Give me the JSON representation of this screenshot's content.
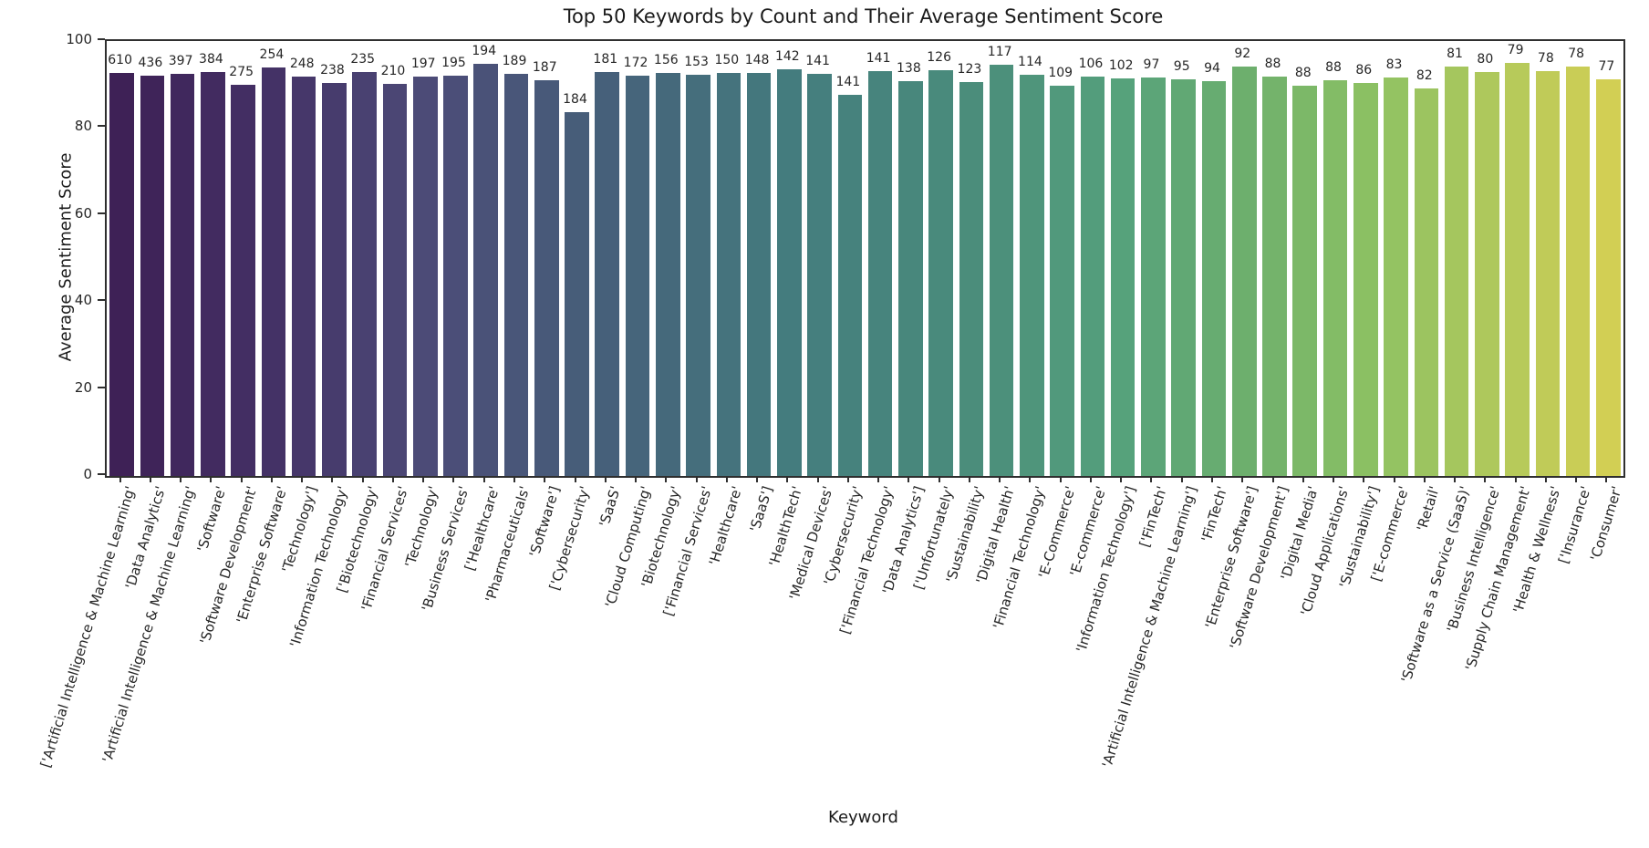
{
  "chart_data": {
    "type": "bar",
    "title": "Top 50 Keywords by Count and Their Average Sentiment Score",
    "xlabel": "Keyword",
    "ylabel": "Average Sentiment Score",
    "ylim": [
      0,
      100
    ],
    "yticks": [
      0,
      20,
      40,
      60,
      80,
      100
    ],
    "grid": false,
    "legend_position": "none",
    "x_tick_rotation_deg": 73,
    "categories": [
      "['Artificial Intelligence & Machine Learning'",
      "'Data Analytics'",
      "'Artificial Intelligence & Machine Learning'",
      "'Software'",
      "'Software Development'",
      "'Enterprise Software'",
      "'Technology']",
      "'Information Technology'",
      "['Biotechnology'",
      "'Financial Services'",
      "'Technology'",
      "'Business Services'",
      "['Healthcare'",
      "'Pharmaceuticals'",
      "'Software']",
      "['Cybersecurity'",
      "'SaaS'",
      "'Cloud Computing'",
      "'Biotechnology'",
      "['Financial Services'",
      "'Healthcare'",
      "'SaaS']",
      "'HealthTech'",
      "'Medical Devices'",
      "'Cybersecurity'",
      "['Financial Technology'",
      "'Data Analytics']",
      "['Unfortunately'",
      "'Sustainability'",
      "'Digital Health'",
      "'Financial Technology'",
      "'E-Commerce'",
      "'E-commerce'",
      "'Information Technology']",
      "['FinTech'",
      "'Artificial Intelligence & Machine Learning']",
      "'FinTech'",
      "'Enterprise Software']",
      "'Software Development']",
      "'Digital Media'",
      "'Cloud Applications'",
      "'Sustainability']",
      "['E-commerce'",
      "'Retail'",
      "'Software as a Service (SaaS)'",
      "'Business Intelligence'",
      "'Supply Chain Management'",
      "'Health & Wellness'",
      "['Insurance'",
      "'Consumer'"
    ],
    "series": [
      {
        "name": "Average Sentiment Score",
        "role": "bar-height",
        "values": [
          92.7,
          92.1,
          92.5,
          92.9,
          89.9,
          93.9,
          91.9,
          90.4,
          92.8,
          90.1,
          91.9,
          92.1,
          94.7,
          92.5,
          91.0,
          83.7,
          92.9,
          92.1,
          92.6,
          92.2,
          92.6,
          92.6,
          93.6,
          92.4,
          87.7,
          93.1,
          90.7,
          93.2,
          90.5,
          94.5,
          92.2,
          89.8,
          91.9,
          91.5,
          91.7,
          91.2,
          90.8,
          94.2,
          91.9,
          89.8,
          91.0,
          90.3,
          91.7,
          89.1,
          94.1,
          92.9,
          94.9,
          93.1,
          94.2,
          91.1
        ]
      },
      {
        "name": "Count",
        "role": "bar-label",
        "values": [
          610,
          436,
          397,
          384,
          275,
          254,
          248,
          238,
          235,
          210,
          197,
          195,
          194,
          189,
          187,
          184,
          181,
          172,
          156,
          153,
          150,
          148,
          142,
          141,
          141,
          141,
          138,
          126,
          123,
          117,
          114,
          109,
          106,
          102,
          97,
          95,
          94,
          92,
          88,
          88,
          88,
          86,
          83,
          82,
          81,
          80,
          79,
          78,
          78,
          77
        ]
      }
    ],
    "palette_name": "viridis (desaturated)",
    "palette_anchors": [
      {
        "t": 0.0,
        "color": "#3e2156"
      },
      {
        "t": 0.1,
        "color": "#443166"
      },
      {
        "t": 0.2,
        "color": "#4c4a77"
      },
      {
        "t": 0.33,
        "color": "#46617a"
      },
      {
        "t": 0.45,
        "color": "#447c7e"
      },
      {
        "t": 0.58,
        "color": "#4b8e7b"
      },
      {
        "t": 0.67,
        "color": "#55a17c"
      },
      {
        "t": 0.75,
        "color": "#6bae6e"
      },
      {
        "t": 0.84,
        "color": "#8cc163"
      },
      {
        "t": 0.92,
        "color": "#afc85c"
      },
      {
        "t": 1.0,
        "color": "#d2cf54"
      }
    ],
    "spine_color": "#2f2f2f",
    "text_color": "#262626"
  }
}
